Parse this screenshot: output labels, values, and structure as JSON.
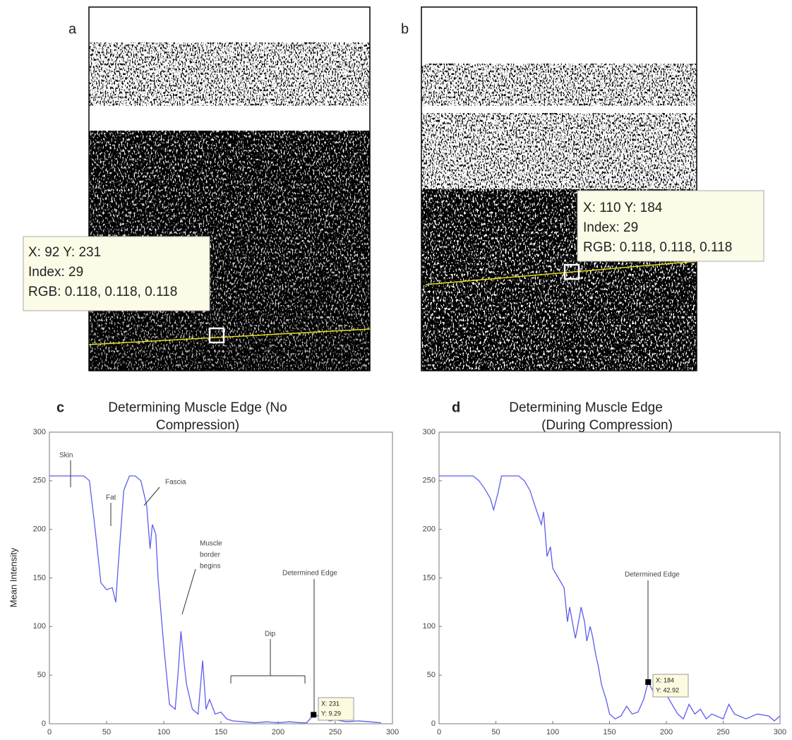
{
  "images": [
    {
      "label": "a",
      "tooltip": [
        "X: 92 Y: 231",
        "Index: 29",
        "RGB: 0.118, 0.118, 0.118"
      ]
    },
    {
      "label": "b",
      "tooltip": [
        "X: 110 Y: 184",
        "Index: 29",
        "RGB: 0.118, 0.118, 0.118"
      ]
    }
  ],
  "chart_data": [
    {
      "type": "line",
      "label": "c",
      "title": [
        "Determining Muscle Edge (No",
        "Compression)"
      ],
      "ylabel": "Mean Intensity",
      "x": [
        0,
        5,
        10,
        15,
        20,
        25,
        30,
        35,
        40,
        45,
        50,
        55,
        58,
        60,
        65,
        70,
        75,
        80,
        85,
        88,
        90,
        93,
        95,
        100,
        105,
        110,
        113,
        115,
        118,
        120,
        125,
        130,
        134,
        137,
        140,
        145,
        150,
        155,
        160,
        170,
        180,
        190,
        200,
        210,
        220,
        225,
        231,
        235,
        240,
        245,
        250,
        260,
        270,
        280,
        290
      ],
      "values": [
        255,
        255,
        255,
        255,
        255,
        255,
        255,
        250,
        200,
        145,
        138,
        140,
        125,
        160,
        240,
        255,
        255,
        250,
        225,
        180,
        205,
        195,
        150,
        80,
        20,
        15,
        60,
        95,
        60,
        40,
        15,
        10,
        65,
        15,
        25,
        10,
        12,
        5,
        3,
        2,
        1,
        2,
        1,
        2,
        1,
        1,
        9.29,
        8,
        6,
        3,
        4,
        2,
        3,
        2,
        1
      ],
      "color": "#5c5cf0",
      "xlim": [
        0,
        300
      ],
      "xticks": [
        0,
        50,
        100,
        150,
        200,
        250,
        300
      ],
      "ylim": [
        0,
        300
      ],
      "yticks": [
        0,
        50,
        100,
        150,
        200,
        250,
        300
      ],
      "annotations": [
        "Skin",
        "Fat",
        "Fascia",
        "Muscle",
        "border",
        "begins",
        "Dip",
        "Determined Edge"
      ],
      "datatip": {
        "x": 231,
        "y": 9.29,
        "lines": [
          "X: 231",
          "Y: 9.29"
        ]
      }
    },
    {
      "type": "line",
      "label": "d",
      "title": [
        "Determining Muscle Edge",
        "(During Compression)"
      ],
      "x": [
        0,
        5,
        10,
        15,
        20,
        25,
        30,
        35,
        40,
        45,
        48,
        52,
        55,
        60,
        65,
        70,
        75,
        80,
        85,
        90,
        92,
        95,
        98,
        100,
        105,
        110,
        113,
        115,
        118,
        120,
        122,
        125,
        128,
        130,
        133,
        135,
        138,
        140,
        143,
        147,
        150,
        155,
        160,
        165,
        170,
        175,
        180,
        184,
        190,
        195,
        200,
        205,
        210,
        215,
        220,
        225,
        230,
        235,
        240,
        250,
        255,
        260,
        270,
        280,
        290,
        295,
        300
      ],
      "values": [
        255,
        255,
        255,
        255,
        255,
        255,
        255,
        250,
        242,
        232,
        220,
        238,
        255,
        255,
        255,
        255,
        250,
        240,
        222,
        205,
        218,
        172,
        182,
        160,
        150,
        140,
        105,
        120,
        100,
        88,
        100,
        120,
        105,
        85,
        100,
        90,
        70,
        60,
        40,
        25,
        10,
        5,
        8,
        18,
        10,
        12,
        25,
        42.92,
        30,
        35,
        30,
        20,
        10,
        5,
        20,
        10,
        15,
        5,
        10,
        5,
        20,
        10,
        5,
        10,
        8,
        3,
        8
      ],
      "color": "#5c5cf0",
      "xlim": [
        0,
        300
      ],
      "xticks": [
        0,
        50,
        100,
        150,
        200,
        250,
        300
      ],
      "ylim": [
        0,
        300
      ],
      "yticks": [
        0,
        50,
        100,
        150,
        200,
        250,
        300
      ],
      "annotations": [
        "Determined Edge"
      ],
      "datatip": {
        "x": 184,
        "y": 42.92,
        "lines": [
          "X: 184",
          "Y: 42.92"
        ]
      }
    }
  ]
}
